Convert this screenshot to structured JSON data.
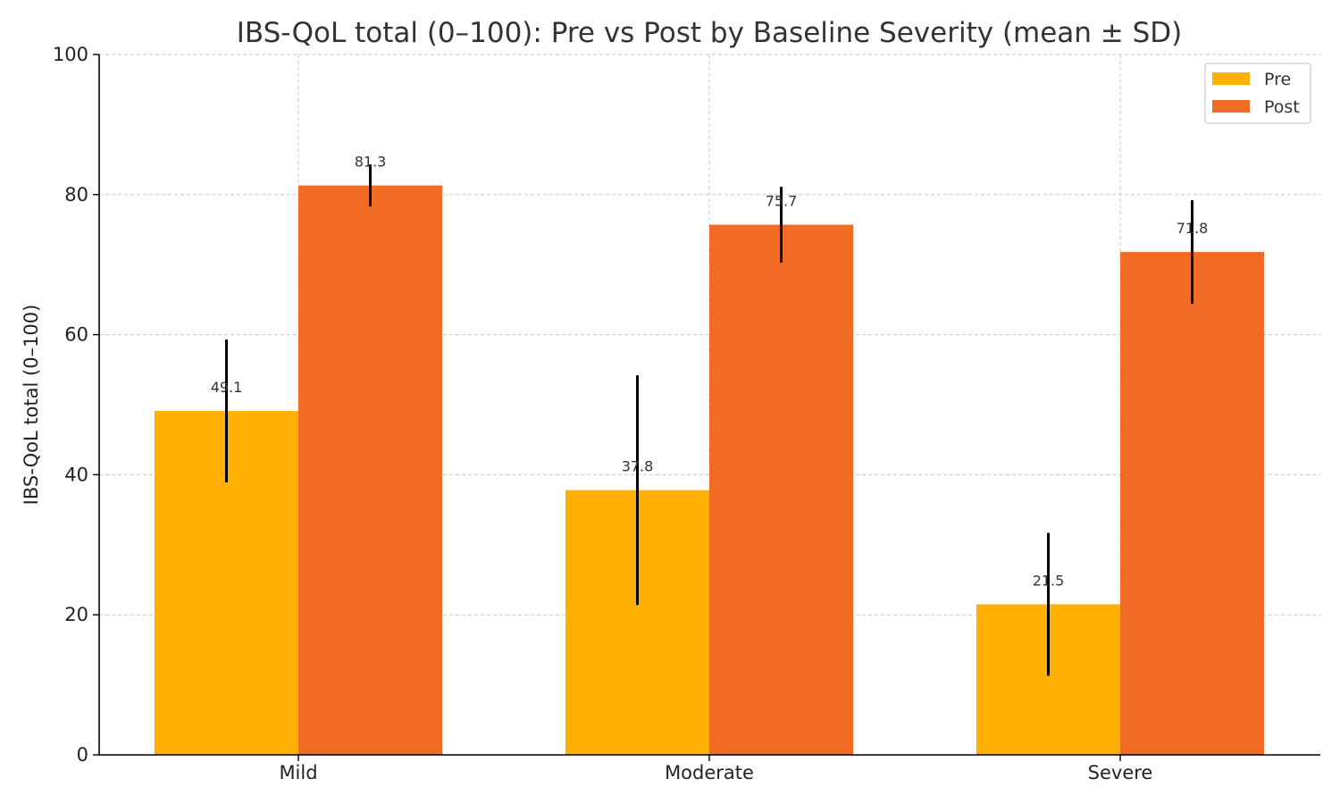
{
  "chart_data": {
    "type": "bar",
    "title": "IBS-QoL total (0–100): Pre vs Post by Baseline Severity (mean ± SD)",
    "xlabel": "",
    "ylabel": "IBS-QoL total (0–100)",
    "ylim": [
      0,
      100
    ],
    "yticks": [
      0,
      20,
      40,
      60,
      80,
      100
    ],
    "categories": [
      "Mild",
      "Moderate",
      "Severe"
    ],
    "series": [
      {
        "name": "Pre",
        "color": "#FFB000",
        "values": [
          49.1,
          37.8,
          21.5
        ],
        "sd": [
          10.2,
          16.4,
          10.2
        ],
        "labels": [
          "49.1",
          "37.8",
          "21.5"
        ]
      },
      {
        "name": "Post",
        "color": "#F26B24",
        "values": [
          81.3,
          75.7,
          71.8
        ],
        "sd": [
          3.0,
          5.4,
          7.4
        ],
        "labels": [
          "81.3",
          "75.7",
          "71.8"
        ]
      }
    ],
    "grid": true,
    "legend_position": "top-right"
  }
}
